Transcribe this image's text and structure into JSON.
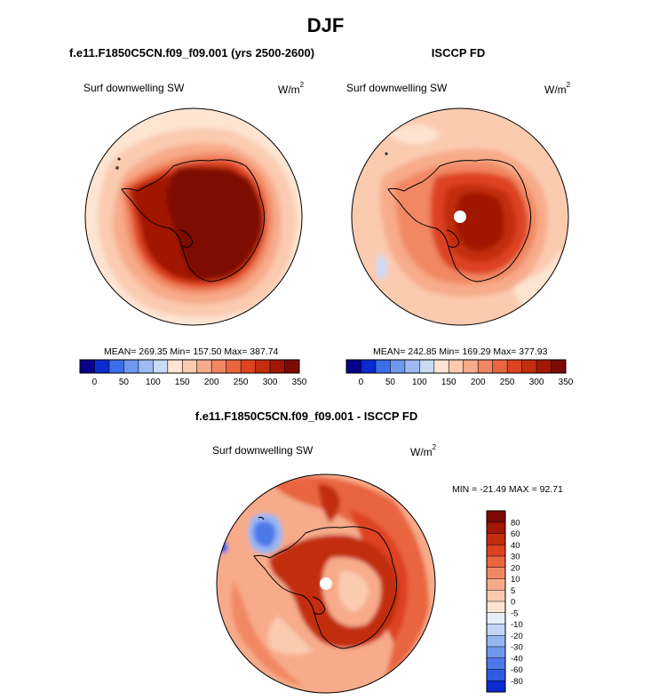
{
  "title": "DJF",
  "colors": {
    "abs_scale": [
      "#08008c",
      "#0a2bd0",
      "#3b6ee8",
      "#6d98ee",
      "#9ebaf2",
      "#c8daf6",
      "#fde5d2",
      "#fbcbb0",
      "#f7ab8a",
      "#f18864",
      "#e9653f",
      "#dd4320",
      "#c22d0e",
      "#a11805",
      "#7d0a02"
    ],
    "diff_scale": [
      "#08008c",
      "#0a2bd0",
      "#2f5ae4",
      "#4d78ea",
      "#6d98ee",
      "#96b6f2",
      "#c3d6f6",
      "#e6eefb",
      "#fde5d2",
      "#fbcbb0",
      "#f7ab8a",
      "#f18864",
      "#e9653f",
      "#dd4320",
      "#c22d0e",
      "#a11805",
      "#7d0a02"
    ],
    "land_outline": "#000000",
    "pole_hole": "#ffffff"
  },
  "panels": {
    "model": {
      "title": "f.e11.F1850C5CN.f09_f09.001 (yrs 2500-2600)",
      "variable": "Surf downwelling SW",
      "units": "W/m",
      "units_exp": "2",
      "stats": "MEAN= 269.35  Min= 157.50  Max= 387.74"
    },
    "obs": {
      "title": "ISCCP FD",
      "variable": "Surf downwelling SW",
      "units": "W/m",
      "units_exp": "2",
      "stats": "MEAN= 242.85  Min= 169.29  Max= 377.93"
    },
    "diff": {
      "title": "f.e11.F1850C5CN.f09_f09.001 - ISCCP FD",
      "variable": "Surf downwelling SW",
      "units": "W/m",
      "units_exp": "2",
      "stats": "MIN = -21.49 MAX =  92.71"
    }
  },
  "chart_data": [
    {
      "type": "heatmap",
      "projection": "south-polar-stereographic",
      "title": "f.e11.F1850C5CN.f09_f09.001 (yrs 2500-2600)",
      "variable": "Surf downwelling SW",
      "units": "W/m^2",
      "mean": 269.35,
      "min": 157.5,
      "max": 387.74,
      "colorbar_levels": [
        0,
        25,
        50,
        75,
        100,
        125,
        150,
        175,
        200,
        225,
        250,
        275,
        300,
        325,
        350
      ],
      "colorbar_tick_labels": [
        "0",
        "50",
        "100",
        "150",
        "200",
        "250",
        "300",
        "350"
      ]
    },
    {
      "type": "heatmap",
      "projection": "south-polar-stereographic",
      "title": "ISCCP FD",
      "variable": "Surf downwelling SW",
      "units": "W/m^2",
      "mean": 242.85,
      "min": 169.29,
      "max": 377.93,
      "colorbar_levels": [
        0,
        25,
        50,
        75,
        100,
        125,
        150,
        175,
        200,
        225,
        250,
        275,
        300,
        325,
        350
      ],
      "colorbar_tick_labels": [
        "0",
        "50",
        "100",
        "150",
        "200",
        "250",
        "300",
        "350"
      ]
    },
    {
      "type": "heatmap",
      "projection": "south-polar-stereographic",
      "title": "f.e11.F1850C5CN.f09_f09.001 - ISCCP FD",
      "variable": "Surf downwelling SW",
      "units": "W/m^2",
      "min": -21.49,
      "max": 92.71,
      "colorbar_levels": [
        -80,
        -60,
        -40,
        -30,
        -20,
        -10,
        -5,
        0,
        5,
        10,
        20,
        30,
        40,
        60,
        80
      ],
      "colorbar_tick_labels": [
        "80",
        "60",
        "40",
        "30",
        "20",
        "10",
        "5",
        "0",
        "-5",
        "-10",
        "-20",
        "-30",
        "-40",
        "-60",
        "-80"
      ]
    }
  ]
}
